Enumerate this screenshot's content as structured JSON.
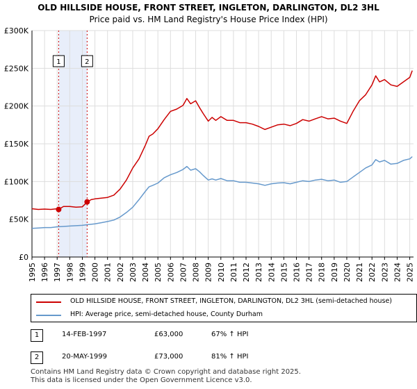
{
  "chart_data": {
    "type": "line",
    "title": "OLD HILLSIDE HOUSE, FRONT STREET, INGLETON, DARLINGTON, DL2 3HL",
    "subtitle": "Price paid vs. HM Land Registry's House Price Index (HPI)",
    "xlim": [
      1995.0,
      2025.3
    ],
    "ylim": [
      0,
      300000
    ],
    "x_ticks": [
      "1995",
      "1996",
      "1997",
      "1998",
      "1999",
      "2000",
      "2001",
      "2002",
      "2003",
      "2004",
      "2005",
      "2006",
      "2007",
      "2008",
      "2009",
      "2010",
      "2011",
      "2012",
      "2013",
      "2014",
      "2015",
      "2016",
      "2017",
      "2018",
      "2019",
      "2020",
      "2021",
      "2022",
      "2023",
      "2024",
      "2025"
    ],
    "y_ticks": [
      {
        "value": 0,
        "label": "£0"
      },
      {
        "value": 50000,
        "label": "£50K"
      },
      {
        "value": 100000,
        "label": "£100K"
      },
      {
        "value": 150000,
        "label": "£150K"
      },
      {
        "value": 200000,
        "label": "£200K"
      },
      {
        "value": 250000,
        "label": "£250K"
      },
      {
        "value": 300000,
        "label": "£300K"
      }
    ],
    "grid": true,
    "colors": {
      "property": "#cc0000",
      "hpi": "#6699cc",
      "band": "#e8eefa",
      "grid": "#dddddd"
    },
    "highlight_band": [
      1997.12,
      1999.38
    ],
    "series": [
      {
        "name": "OLD HILLSIDE HOUSE, FRONT STREET, INGLETON, DARLINGTON, DL2 3HL (semi-detached house)",
        "color": "#cc0000",
        "x": [
          1995.0,
          1995.5,
          1996.0,
          1996.5,
          1997.0,
          1997.12,
          1997.5,
          1998.0,
          1998.5,
          1999.0,
          1999.38,
          1999.7,
          2000.0,
          2000.5,
          2001.0,
          2001.5,
          2002.0,
          2002.5,
          2003.0,
          2003.5,
          2004.0,
          2004.3,
          2004.6,
          2005.0,
          2005.5,
          2006.0,
          2006.5,
          2007.0,
          2007.3,
          2007.6,
          2008.0,
          2008.3,
          2008.6,
          2009.0,
          2009.3,
          2009.6,
          2010.0,
          2010.5,
          2011.0,
          2011.5,
          2012.0,
          2012.5,
          2013.0,
          2013.5,
          2014.0,
          2014.5,
          2015.0,
          2015.5,
          2016.0,
          2016.5,
          2017.0,
          2017.5,
          2018.0,
          2018.5,
          2019.0,
          2019.5,
          2020.0,
          2020.5,
          2021.0,
          2021.5,
          2022.0,
          2022.3,
          2022.6,
          2023.0,
          2023.5,
          2024.0,
          2024.5,
          2025.0,
          2025.2
        ],
        "y": [
          64000,
          63000,
          63500,
          63000,
          64000,
          63000,
          67000,
          67000,
          66000,
          66500,
          73000,
          76000,
          77000,
          78000,
          79000,
          82000,
          90000,
          102000,
          118000,
          130000,
          148000,
          160000,
          163000,
          170000,
          182000,
          193000,
          196000,
          201000,
          210000,
          203000,
          207000,
          198000,
          190000,
          180000,
          185000,
          181000,
          186000,
          181000,
          181000,
          178000,
          178000,
          176000,
          173000,
          169000,
          172000,
          175000,
          176000,
          174000,
          177000,
          182000,
          180000,
          183000,
          186000,
          183000,
          184000,
          180000,
          177000,
          193000,
          207000,
          215000,
          228000,
          240000,
          232000,
          235000,
          228000,
          226000,
          232000,
          238000,
          247000
        ]
      },
      {
        "name": "HPI: Average price, semi-detached house, County Durham",
        "color": "#6699cc",
        "x": [
          1995.0,
          1995.5,
          1996.0,
          1996.5,
          1997.0,
          1997.5,
          1998.0,
          1998.5,
          1999.0,
          1999.5,
          2000.0,
          2000.5,
          2001.0,
          2001.5,
          2002.0,
          2002.5,
          2003.0,
          2003.5,
          2004.0,
          2004.3,
          2004.6,
          2005.0,
          2005.5,
          2006.0,
          2006.5,
          2007.0,
          2007.3,
          2007.6,
          2008.0,
          2008.3,
          2008.6,
          2009.0,
          2009.3,
          2009.6,
          2010.0,
          2010.5,
          2011.0,
          2011.5,
          2012.0,
          2012.5,
          2013.0,
          2013.5,
          2014.0,
          2014.5,
          2015.0,
          2015.5,
          2016.0,
          2016.5,
          2017.0,
          2017.5,
          2018.0,
          2018.5,
          2019.0,
          2019.5,
          2020.0,
          2020.5,
          2021.0,
          2021.5,
          2022.0,
          2022.3,
          2022.6,
          2023.0,
          2023.5,
          2024.0,
          2024.5,
          2025.0,
          2025.2
        ],
        "y": [
          38000,
          38500,
          39000,
          39000,
          40000,
          40500,
          41000,
          41500,
          42000,
          43000,
          44000,
          45500,
          47000,
          49000,
          53000,
          59000,
          66000,
          76000,
          87000,
          93000,
          95000,
          98000,
          105000,
          109000,
          112000,
          116000,
          120000,
          115000,
          117000,
          113000,
          108000,
          102000,
          103500,
          102000,
          104000,
          101000,
          101000,
          99000,
          99000,
          98000,
          97000,
          95000,
          97000,
          98000,
          98500,
          97000,
          99000,
          101000,
          100000,
          102000,
          103000,
          101000,
          102000,
          99000,
          100000,
          106000,
          112000,
          118000,
          122000,
          129000,
          126000,
          128000,
          123000,
          124000,
          128000,
          130000,
          133000
        ]
      }
    ],
    "sales": [
      {
        "label": "1",
        "x": 1997.12,
        "y": 63000
      },
      {
        "label": "2",
        "x": 1999.38,
        "y": 73000
      }
    ],
    "legend": {
      "property": "OLD HILLSIDE HOUSE, FRONT STREET, INGLETON, DARLINGTON, DL2 3HL (semi-detached house)",
      "hpi": "HPI: Average price, semi-detached house, County Durham"
    }
  },
  "transactions": [
    {
      "num": "1",
      "date": "14-FEB-1997",
      "price": "£63,000",
      "hpi": "67% ↑ HPI"
    },
    {
      "num": "2",
      "date": "20-MAY-1999",
      "price": "£73,000",
      "hpi": "81% ↑ HPI"
    }
  ],
  "footer": {
    "line1": "Contains HM Land Registry data © Crown copyright and database right 2025.",
    "line2": "This data is licensed under the Open Government Licence v3.0."
  }
}
